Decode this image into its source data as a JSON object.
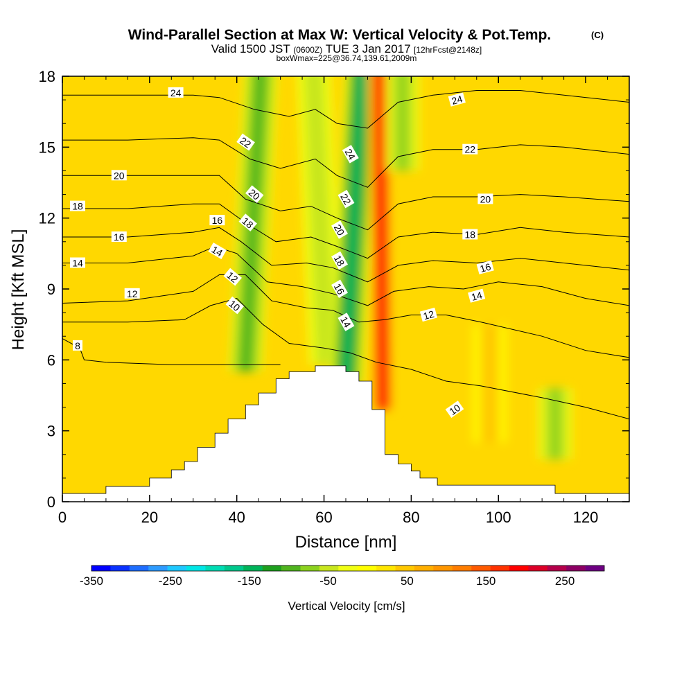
{
  "chart_data": {
    "type": "heatmap",
    "title": "Wind-Parallel Section at Max W: Vertical Velocity & Pot.Temp.",
    "title_mark": "(C)",
    "subtitle": {
      "a": "Valid 1500 JST",
      "b": "(0600Z)",
      "c": "TUE 3 Jan 2017",
      "d": "[12hrFcst@2148z]"
    },
    "box_line": "boxWmax=225@36.74,139.61,2009m",
    "xlabel": "Distance [nm]",
    "ylabel": "Height [Kft MSL]",
    "xlim": [
      0,
      130
    ],
    "ylim": [
      0,
      18
    ],
    "x_ticks": [
      "0",
      "20",
      "40",
      "60",
      "80",
      "100",
      "120"
    ],
    "y_ticks": [
      "0",
      "3",
      "6",
      "9",
      "12",
      "15",
      "18"
    ],
    "colorbar": {
      "label": "Vertical Velocity [cm/s]",
      "tick_labels": [
        "-350",
        "-250",
        "-150",
        "-50",
        "50",
        "150",
        "250"
      ],
      "range": [
        -350,
        300
      ],
      "step": 25,
      "colors": [
        "#0000ff",
        "#0a32ff",
        "#1e6eff",
        "#2d9bff",
        "#1ec8ff",
        "#00e6e6",
        "#00dcb4",
        "#00c88c",
        "#00b45a",
        "#1ea01e",
        "#50b41e",
        "#8cd21e",
        "#c8e61e",
        "#f0ff14",
        "#ffff00",
        "#ffe600",
        "#ffc800",
        "#ffaf00",
        "#ff9600",
        "#ff7d00",
        "#ff5a00",
        "#ff3200",
        "#ff0000",
        "#dc0028",
        "#b4004b",
        "#8c0064",
        "#6e0082"
      ]
    },
    "terrain_profile": [
      [
        0,
        0.35
      ],
      [
        10,
        0.35
      ],
      [
        10,
        0.65
      ],
      [
        20,
        0.65
      ],
      [
        20,
        1.0
      ],
      [
        25,
        1.0
      ],
      [
        25,
        1.35
      ],
      [
        28,
        1.35
      ],
      [
        28,
        1.7
      ],
      [
        31,
        1.7
      ],
      [
        31,
        2.3
      ],
      [
        35,
        2.3
      ],
      [
        35,
        2.9
      ],
      [
        38,
        2.9
      ],
      [
        38,
        3.5
      ],
      [
        42,
        3.5
      ],
      [
        42,
        4.1
      ],
      [
        45,
        4.1
      ],
      [
        45,
        4.6
      ],
      [
        49,
        4.6
      ],
      [
        49,
        5.2
      ],
      [
        52,
        5.2
      ],
      [
        52,
        5.5
      ],
      [
        58,
        5.5
      ],
      [
        58,
        5.75
      ],
      [
        65,
        5.75
      ],
      [
        65,
        5.5
      ],
      [
        68,
        5.5
      ],
      [
        68,
        5.1
      ],
      [
        71,
        5.1
      ],
      [
        71,
        3.9
      ],
      [
        74,
        3.9
      ],
      [
        74,
        2.0
      ],
      [
        77,
        2.0
      ],
      [
        77,
        1.6
      ],
      [
        80,
        1.6
      ],
      [
        80,
        1.3
      ],
      [
        82,
        1.3
      ],
      [
        82,
        1.0
      ],
      [
        86,
        1.0
      ],
      [
        86,
        0.7
      ],
      [
        113,
        0.7
      ],
      [
        113,
        0.35
      ],
      [
        130,
        0.35
      ]
    ],
    "velocity_features": [
      {
        "x": 42,
        "y0": 5.5,
        "y1": 18,
        "w": -90,
        "lean": 0.3
      },
      {
        "x": 60.5,
        "y0": 5.8,
        "y1": 18,
        "w": -40,
        "lean": -0.25
      },
      {
        "x": 65,
        "y0": 5.0,
        "y1": 18,
        "w": -140,
        "lean": 0.3
      },
      {
        "x": 73.5,
        "y0": 3.9,
        "y1": 18,
        "w": 200,
        "lean": -0.05
      },
      {
        "x": 78,
        "y0": 14,
        "y1": 18,
        "w": -60,
        "lean": 0
      },
      {
        "x": 113,
        "y0": 1.8,
        "y1": 3.8,
        "w": -60,
        "lean": 0
      },
      {
        "x": 98,
        "y0": 2.5,
        "y1": 6.5,
        "w": 60,
        "lean": 0
      }
    ],
    "contours": [
      {
        "level": "8",
        "pts": [
          [
            0,
            6.9
          ],
          [
            4,
            6.5
          ],
          [
            5,
            6.0
          ],
          [
            10,
            5.9
          ],
          [
            25,
            5.8
          ],
          [
            50,
            5.8
          ]
        ]
      },
      {
        "level": "10",
        "pts": [
          [
            0,
            7.6
          ],
          [
            15,
            7.6
          ],
          [
            28,
            7.7
          ],
          [
            34,
            8.3
          ],
          [
            40,
            8.6
          ],
          [
            46,
            7.5
          ],
          [
            52,
            6.7
          ],
          [
            60,
            6.5
          ],
          [
            66,
            6.3
          ],
          [
            72,
            5.9
          ],
          [
            80,
            5.6
          ],
          [
            88,
            5.1
          ],
          [
            96,
            4.9
          ],
          [
            110,
            4.4
          ],
          [
            120,
            4.0
          ],
          [
            130,
            3.5
          ]
        ]
      },
      {
        "level": "12",
        "pts": [
          [
            0,
            8.4
          ],
          [
            15,
            8.5
          ],
          [
            30,
            8.9
          ],
          [
            36,
            9.6
          ],
          [
            42,
            9.6
          ],
          [
            48,
            8.5
          ],
          [
            56,
            8.2
          ],
          [
            62,
            8.1
          ],
          [
            68,
            7.6
          ],
          [
            74,
            7.7
          ],
          [
            80,
            7.9
          ],
          [
            88,
            7.9
          ],
          [
            96,
            7.6
          ],
          [
            110,
            7.0
          ],
          [
            120,
            6.4
          ],
          [
            130,
            6.1
          ]
        ]
      },
      {
        "level": "14",
        "pts": [
          [
            0,
            10.1
          ],
          [
            15,
            10.1
          ],
          [
            30,
            10.4
          ],
          [
            35,
            10.8
          ],
          [
            40,
            10.5
          ],
          [
            47,
            9.3
          ],
          [
            55,
            9.1
          ],
          [
            62,
            8.8
          ],
          [
            70,
            8.3
          ],
          [
            76,
            8.9
          ],
          [
            84,
            9.1
          ],
          [
            92,
            9.0
          ],
          [
            100,
            9.3
          ],
          [
            110,
            9.1
          ],
          [
            120,
            8.6
          ],
          [
            130,
            8.3
          ]
        ]
      },
      {
        "level": "16",
        "pts": [
          [
            0,
            11.2
          ],
          [
            15,
            11.2
          ],
          [
            30,
            11.4
          ],
          [
            36,
            11.6
          ],
          [
            41,
            11.0
          ],
          [
            48,
            10.0
          ],
          [
            56,
            10.1
          ],
          [
            62,
            9.9
          ],
          [
            70,
            9.3
          ],
          [
            77,
            10.0
          ],
          [
            85,
            10.2
          ],
          [
            95,
            10.1
          ],
          [
            105,
            10.3
          ],
          [
            115,
            10.1
          ],
          [
            130,
            9.8
          ]
        ]
      },
      {
        "level": "18",
        "pts": [
          [
            0,
            12.4
          ],
          [
            15,
            12.4
          ],
          [
            30,
            12.6
          ],
          [
            36,
            12.6
          ],
          [
            42,
            11.8
          ],
          [
            49,
            11.0
          ],
          [
            57,
            11.2
          ],
          [
            63,
            10.8
          ],
          [
            70,
            10.3
          ],
          [
            77,
            11.2
          ],
          [
            85,
            11.4
          ],
          [
            95,
            11.3
          ],
          [
            105,
            11.6
          ],
          [
            115,
            11.4
          ],
          [
            130,
            11.2
          ]
        ]
      },
      {
        "level": "20",
        "pts": [
          [
            0,
            13.8
          ],
          [
            15,
            13.8
          ],
          [
            30,
            13.8
          ],
          [
            36,
            13.8
          ],
          [
            42,
            12.8
          ],
          [
            50,
            12.3
          ],
          [
            57,
            12.5
          ],
          [
            63,
            12.0
          ],
          [
            70,
            11.5
          ],
          [
            77,
            12.6
          ],
          [
            85,
            12.9
          ],
          [
            95,
            12.9
          ],
          [
            105,
            13.0
          ],
          [
            115,
            12.9
          ],
          [
            130,
            12.7
          ]
        ]
      },
      {
        "level": "22",
        "pts": [
          [
            0,
            15.3
          ],
          [
            15,
            15.3
          ],
          [
            30,
            15.4
          ],
          [
            36,
            15.3
          ],
          [
            43,
            14.5
          ],
          [
            50,
            14.1
          ],
          [
            58,
            14.5
          ],
          [
            63,
            13.8
          ],
          [
            70,
            13.3
          ],
          [
            77,
            14.6
          ],
          [
            85,
            14.9
          ],
          [
            95,
            14.9
          ],
          [
            105,
            15.1
          ],
          [
            115,
            15.0
          ],
          [
            130,
            14.7
          ]
        ]
      },
      {
        "level": "24",
        "pts": [
          [
            0,
            17.2
          ],
          [
            15,
            17.2
          ],
          [
            30,
            17.2
          ],
          [
            36,
            17.1
          ],
          [
            44,
            16.6
          ],
          [
            52,
            16.3
          ],
          [
            58,
            16.6
          ],
          [
            63,
            16.0
          ],
          [
            70,
            15.8
          ],
          [
            77,
            16.9
          ],
          [
            85,
            17.2
          ],
          [
            95,
            17.4
          ],
          [
            105,
            17.4
          ],
          [
            115,
            17.2
          ],
          [
            130,
            16.9
          ]
        ]
      }
    ],
    "contour_label_spots": [
      {
        "level": "24",
        "x": 26,
        "y": 17.3,
        "rot": 0
      },
      {
        "level": "22",
        "x": 42,
        "y": 15.2,
        "rot": 35
      },
      {
        "level": "20",
        "x": 44,
        "y": 13.0,
        "rot": 40
      },
      {
        "level": "18",
        "x": 42.5,
        "y": 11.8,
        "rot": 40
      },
      {
        "level": "16",
        "x": 35.5,
        "y": 11.9,
        "rot": 0
      },
      {
        "level": "14",
        "x": 35.5,
        "y": 10.6,
        "rot": 30
      },
      {
        "level": "12",
        "x": 39,
        "y": 9.5,
        "rot": 40
      },
      {
        "level": "10",
        "x": 39.5,
        "y": 8.3,
        "rot": 40
      },
      {
        "level": "24",
        "x": 66,
        "y": 14.7,
        "rot": 60
      },
      {
        "level": "22",
        "x": 65,
        "y": 12.8,
        "rot": 60
      },
      {
        "level": "20",
        "x": 63.5,
        "y": 11.5,
        "rot": 60
      },
      {
        "level": "18",
        "x": 63.5,
        "y": 10.2,
        "rot": 60
      },
      {
        "level": "16",
        "x": 63.5,
        "y": 9.0,
        "rot": 60
      },
      {
        "level": "14",
        "x": 65,
        "y": 7.6,
        "rot": 60
      },
      {
        "level": "24",
        "x": 90.5,
        "y": 17.0,
        "rot": -15
      },
      {
        "level": "22",
        "x": 93.5,
        "y": 14.9,
        "rot": 0
      },
      {
        "level": "20",
        "x": 97,
        "y": 12.8,
        "rot": 0
      },
      {
        "level": "18",
        "x": 93.5,
        "y": 11.3,
        "rot": 0
      },
      {
        "level": "16",
        "x": 97,
        "y": 9.9,
        "rot": -15
      },
      {
        "level": "14",
        "x": 95,
        "y": 8.7,
        "rot": -15
      },
      {
        "level": "12",
        "x": 84,
        "y": 7.9,
        "rot": -15
      },
      {
        "level": "10",
        "x": 90,
        "y": 3.9,
        "rot": -35
      },
      {
        "level": "20",
        "x": 13,
        "y": 13.8,
        "rot": 0
      },
      {
        "level": "18",
        "x": 3.5,
        "y": 12.5,
        "rot": 0
      },
      {
        "level": "16",
        "x": 13,
        "y": 11.2,
        "rot": 0
      },
      {
        "level": "14",
        "x": 3.5,
        "y": 10.1,
        "rot": 0
      },
      {
        "level": "12",
        "x": 16,
        "y": 8.8,
        "rot": 0
      },
      {
        "level": "8",
        "x": 3.5,
        "y": 6.6,
        "rot": 0
      }
    ]
  }
}
